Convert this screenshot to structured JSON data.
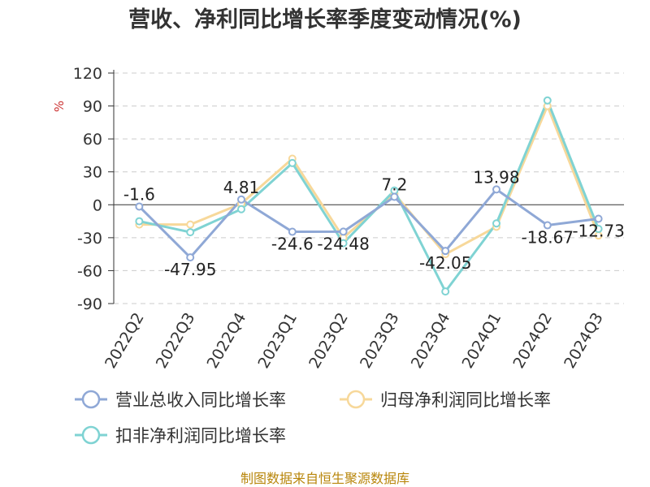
{
  "chart_data": {
    "type": "line",
    "title": "营收、净利同比增长率季度变动情况(%)",
    "ylabel": "%",
    "categories": [
      "2022Q2",
      "2022Q3",
      "2022Q4",
      "2023Q1",
      "2023Q2",
      "2023Q3",
      "2023Q4",
      "2024Q1",
      "2024Q2",
      "2024Q3"
    ],
    "ylim": [
      -90,
      120
    ],
    "yticks": [
      "120",
      "90",
      "60",
      "30",
      "0",
      "-30",
      "-60",
      "-90"
    ],
    "grid": true,
    "legend_position": "bottom",
    "series": [
      {
        "name": "营业总收入同比增长率",
        "color": "#8fa8d6",
        "values": [
          -1.6,
          -47.95,
          4.81,
          -24.6,
          -24.48,
          7.2,
          -42.05,
          13.98,
          -18.67,
          -12.73
        ],
        "labels": [
          "-1.6",
          "-47.95",
          "4.81",
          "-24.6",
          "-24.48",
          "7.2",
          "-42.05",
          "13.98",
          "-18.67",
          "-12.73"
        ]
      },
      {
        "name": "归母净利润同比增长率",
        "color": "#f7d89a",
        "values": [
          -18,
          -18,
          1,
          42,
          -30,
          10,
          -45,
          -20,
          90,
          -28
        ]
      },
      {
        "name": "扣非净利润同比增长率",
        "color": "#7fd3d3",
        "values": [
          -15,
          -25,
          -4,
          38,
          -35,
          13,
          -79,
          -17,
          95,
          -22
        ]
      }
    ]
  },
  "source": "制图数据来自恒生聚源数据库"
}
